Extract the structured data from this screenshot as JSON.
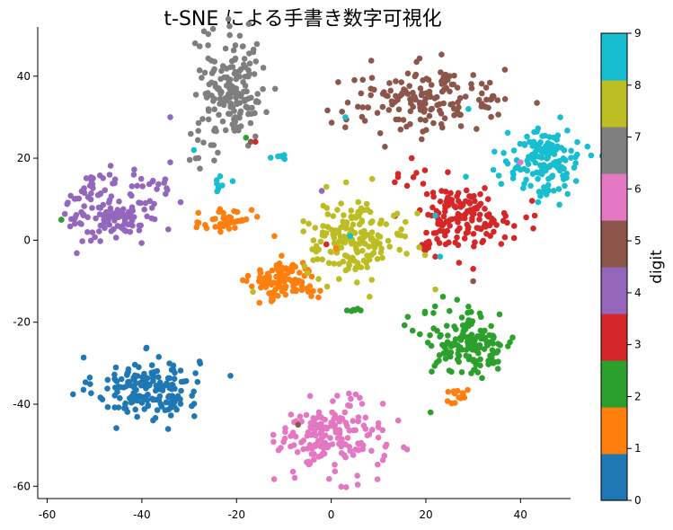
{
  "chart_data": {
    "type": "scatter",
    "title": "t-SNE による手書き数字可視化",
    "xlim": [
      -62,
      50
    ],
    "ylim": [
      -63,
      52
    ],
    "xticks": [
      -60,
      -40,
      -20,
      0,
      20,
      40
    ],
    "yticks": [
      -60,
      -40,
      -20,
      0,
      20,
      40
    ],
    "grid": false,
    "colorbar": {
      "label": "digit",
      "range": [
        0,
        9
      ],
      "ticks": [
        0,
        1,
        2,
        3,
        4,
        5,
        6,
        7,
        8,
        9
      ],
      "colors": [
        "#1f77b4",
        "#ff7f0e",
        "#2ca02c",
        "#d62728",
        "#9467bd",
        "#8c564b",
        "#e377c2",
        "#7f7f7f",
        "#bcbd22",
        "#17becf"
      ]
    },
    "clusters": [
      {
        "digit": 0,
        "center": [
          -39,
          -36
        ],
        "spread": [
          5.5,
          3.8
        ],
        "count": 175
      },
      {
        "digit": 1,
        "center": [
          -10,
          -10
        ],
        "spread": [
          3.5,
          2.3
        ],
        "count": 110
      },
      {
        "digit": 1,
        "center": [
          -22,
          5
        ],
        "spread": [
          2.5,
          2.2
        ],
        "count": 45
      },
      {
        "digit": 1,
        "center": [
          27,
          -38
        ],
        "spread": [
          1.5,
          1.1
        ],
        "count": 14
      },
      {
        "digit": 2,
        "center": [
          29,
          -25
        ],
        "spread": [
          5.0,
          4.0
        ],
        "count": 150
      },
      {
        "digit": 2,
        "center": [
          5,
          -17
        ],
        "spread": [
          1.2,
          0.3
        ],
        "count": 6
      },
      {
        "digit": 3,
        "center": [
          28,
          6
        ],
        "spread": [
          5.0,
          3.5
        ],
        "count": 140
      },
      {
        "digit": 3,
        "center": [
          17,
          14
        ],
        "spread": [
          2.0,
          1.2
        ],
        "count": 8
      },
      {
        "digit": 3,
        "center": [
          20,
          -2
        ],
        "spread": [
          1.0,
          1.0
        ],
        "count": 10
      },
      {
        "digit": 4,
        "center": [
          -46,
          8
        ],
        "spread": [
          5.0,
          4.5
        ],
        "count": 140
      },
      {
        "digit": 4,
        "center": [
          -37,
          14
        ],
        "spread": [
          2.0,
          1.0
        ],
        "count": 8
      },
      {
        "digit": 5,
        "center": [
          20,
          34
        ],
        "spread": [
          9.0,
          4.0
        ],
        "count": 165
      },
      {
        "digit": 6,
        "center": [
          0,
          -48
        ],
        "spread": [
          5.5,
          4.5
        ],
        "count": 170
      },
      {
        "digit": 7,
        "center": [
          -21,
          37
        ],
        "spread": [
          3.5,
          6.5
        ],
        "count": 175
      },
      {
        "digit": 7,
        "center": [
          -27,
          22
        ],
        "spread": [
          1.5,
          1.5
        ],
        "count": 8
      },
      {
        "digit": 8,
        "center": [
          5,
          0
        ],
        "spread": [
          5.5,
          4.5
        ],
        "count": 175
      },
      {
        "digit": 9,
        "center": [
          45,
          19
        ],
        "spread": [
          4.0,
          4.0
        ],
        "count": 145
      },
      {
        "digit": 9,
        "center": [
          -24,
          14
        ],
        "spread": [
          1.2,
          1.2
        ],
        "count": 9
      },
      {
        "digit": 9,
        "center": [
          -11,
          20
        ],
        "spread": [
          1.5,
          0.5
        ],
        "count": 6
      }
    ],
    "extra_points": [
      {
        "digit": 4,
        "x": -34,
        "y": 30
      },
      {
        "digit": 4,
        "x": -34,
        "y": 19
      },
      {
        "digit": 4,
        "x": -57,
        "y": 5
      },
      {
        "digit": 2,
        "x": -57,
        "y": 5
      },
      {
        "digit": 5,
        "x": -17,
        "y": 24
      },
      {
        "digit": 3,
        "x": -16,
        "y": 24
      },
      {
        "digit": 2,
        "x": -18,
        "y": 25
      },
      {
        "digit": 9,
        "x": -29,
        "y": 22
      },
      {
        "digit": 4,
        "x": -2,
        "y": 12
      },
      {
        "digit": 8,
        "x": -1,
        "y": 13
      },
      {
        "digit": 9,
        "x": 3,
        "y": 30
      },
      {
        "digit": 5,
        "x": 30,
        "y": -10
      },
      {
        "digit": 3,
        "x": 30,
        "y": -7
      },
      {
        "digit": 5,
        "x": -7,
        "y": -45
      },
      {
        "digit": 1,
        "x": -12,
        "y": 1
      },
      {
        "digit": 3,
        "x": 22,
        "y": -4
      },
      {
        "digit": 9,
        "x": 23,
        "y": -4
      },
      {
        "digit": 3,
        "x": 17,
        "y": 20
      },
      {
        "digit": 9,
        "x": 29,
        "y": 32
      },
      {
        "digit": 8,
        "x": 22,
        "y": -12
      },
      {
        "digit": 2,
        "x": 21,
        "y": -42
      },
      {
        "digit": 3,
        "x": -1,
        "y": -1
      },
      {
        "digit": 9,
        "x": 4,
        "y": 1
      },
      {
        "digit": 1,
        "x": 1,
        "y": -2
      },
      {
        "digit": 3,
        "x": 43,
        "y": 6
      },
      {
        "digit": 6,
        "x": 40,
        "y": 19
      },
      {
        "digit": 9,
        "x": 22,
        "y": 6
      }
    ]
  }
}
